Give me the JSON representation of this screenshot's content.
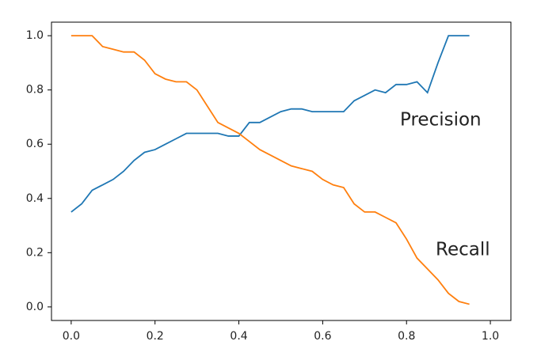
{
  "chart_data": {
    "type": "line",
    "x": [
      0,
      0.025,
      0.05,
      0.075,
      0.1,
      0.125,
      0.15,
      0.175,
      0.2,
      0.225,
      0.25,
      0.275,
      0.3,
      0.325,
      0.35,
      0.375,
      0.4,
      0.425,
      0.45,
      0.475,
      0.5,
      0.525,
      0.55,
      0.575,
      0.6,
      0.625,
      0.65,
      0.675,
      0.7,
      0.725,
      0.75,
      0.775,
      0.8,
      0.825,
      0.85,
      0.875,
      0.9,
      0.925,
      0.95
    ],
    "series": [
      {
        "name": "Precision",
        "color": "#1f77b4",
        "values": [
          0.35,
          0.38,
          0.43,
          0.45,
          0.47,
          0.5,
          0.54,
          0.57,
          0.58,
          0.6,
          0.62,
          0.64,
          0.64,
          0.64,
          0.64,
          0.63,
          0.63,
          0.68,
          0.68,
          0.7,
          0.72,
          0.73,
          0.73,
          0.72,
          0.72,
          0.72,
          0.72,
          0.76,
          0.78,
          0.8,
          0.79,
          0.82,
          0.82,
          0.83,
          0.79,
          0.9,
          1.0,
          1.0,
          1.0
        ]
      },
      {
        "name": "Recall",
        "color": "#ff7f0e",
        "values": [
          1.0,
          1.0,
          1.0,
          0.96,
          0.95,
          0.94,
          0.94,
          0.91,
          0.86,
          0.84,
          0.83,
          0.83,
          0.8,
          0.74,
          0.68,
          0.66,
          0.64,
          0.61,
          0.58,
          0.56,
          0.54,
          0.52,
          0.51,
          0.5,
          0.47,
          0.45,
          0.44,
          0.38,
          0.35,
          0.35,
          0.33,
          0.31,
          0.25,
          0.18,
          0.14,
          0.1,
          0.05,
          0.02,
          0.01
        ]
      }
    ],
    "xlim": [
      -0.047,
      1.049
    ],
    "ylim": [
      -0.05,
      1.05
    ],
    "xticks": [
      {
        "value": 0,
        "label": "0.0"
      },
      0.2,
      0.4,
      0.6,
      0.8,
      {
        "value": 1,
        "label": "1.0"
      }
    ],
    "yticks": [
      {
        "value": 0,
        "label": "0.0"
      },
      0.2,
      0.4,
      0.6,
      0.8,
      {
        "value": 1,
        "label": "1.0"
      }
    ],
    "grid": false
  }
}
